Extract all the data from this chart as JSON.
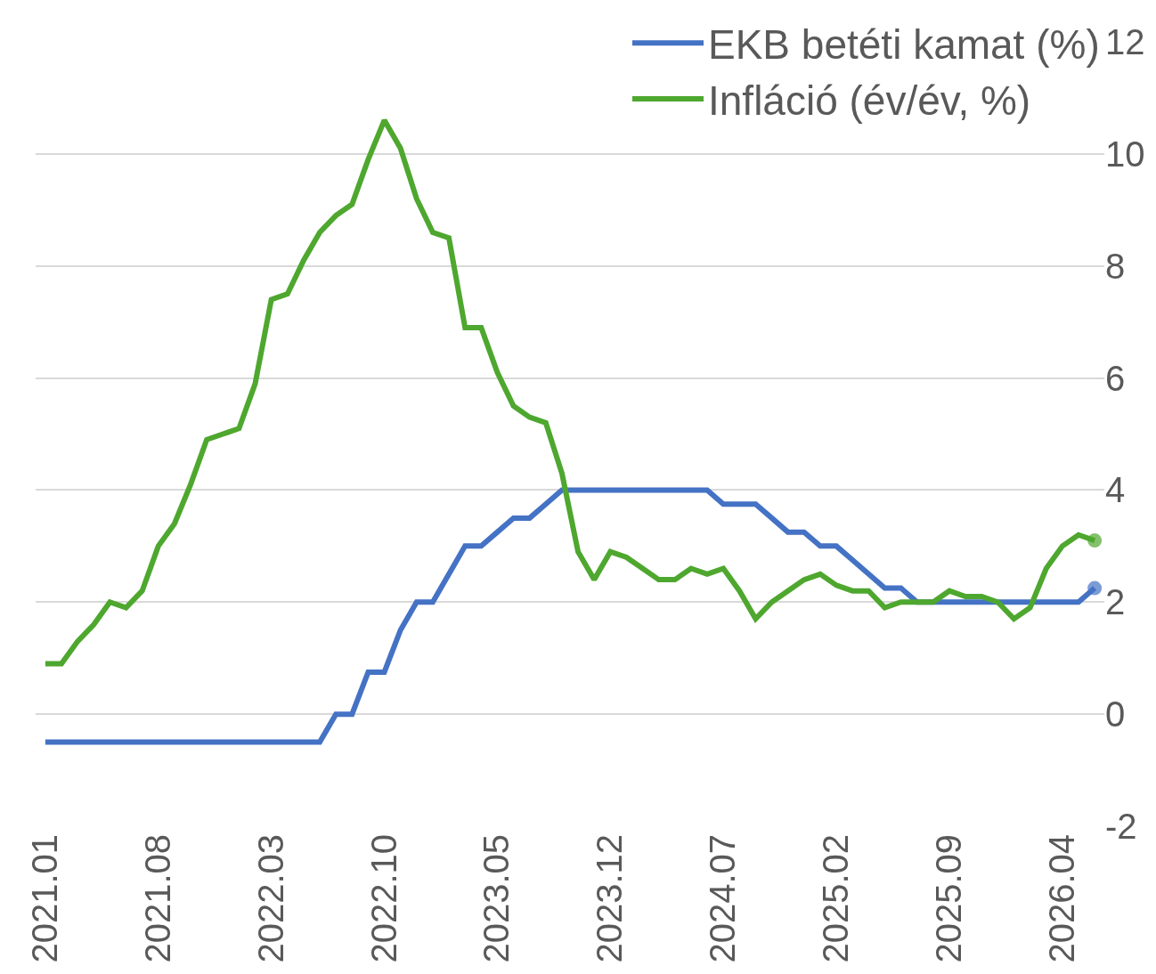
{
  "chart_data": {
    "type": "line",
    "categories": [
      "2021.01",
      null,
      null,
      null,
      null,
      null,
      null,
      "2021.08",
      null,
      null,
      null,
      null,
      null,
      null,
      "2022.03",
      null,
      null,
      null,
      null,
      null,
      null,
      "2022.10",
      null,
      null,
      null,
      null,
      null,
      null,
      "2023.05",
      null,
      null,
      null,
      null,
      null,
      null,
      "2023.12",
      null,
      null,
      null,
      null,
      null,
      null,
      "2024.07",
      null,
      null,
      null,
      null,
      null,
      null,
      "2025.02",
      null,
      null,
      null,
      null,
      null,
      null,
      "2025.09",
      null,
      null,
      null,
      null,
      null,
      null,
      "2026.04",
      null,
      null
    ],
    "series": [
      {
        "name": "EKB betéti kamat (%)",
        "color": "#4472c4",
        "values": [
          -0.5,
          -0.5,
          -0.5,
          -0.5,
          -0.5,
          -0.5,
          -0.5,
          -0.5,
          -0.5,
          -0.5,
          -0.5,
          -0.5,
          -0.5,
          -0.5,
          -0.5,
          -0.5,
          -0.5,
          -0.5,
          0,
          0,
          0.75,
          0.75,
          1.5,
          2,
          2,
          2.5,
          3,
          3,
          3.25,
          3.5,
          3.5,
          3.75,
          4,
          4,
          4,
          4,
          4,
          4,
          4,
          4,
          4,
          4,
          3.75,
          3.75,
          3.75,
          3.5,
          3.25,
          3.25,
          3,
          3,
          2.75,
          2.5,
          2.25,
          2.25,
          2,
          2,
          2,
          2,
          2,
          2,
          2,
          2,
          2,
          2,
          2,
          2.25
        ]
      },
      {
        "name": "Infláció (év/év, %)",
        "color": "#4ea72e",
        "values": [
          0.9,
          0.9,
          1.3,
          1.6,
          2.0,
          1.9,
          2.2,
          3.0,
          3.4,
          4.1,
          4.9,
          5.0,
          5.1,
          5.9,
          7.4,
          7.5,
          8.1,
          8.6,
          8.9,
          9.1,
          9.9,
          10.6,
          10.1,
          9.2,
          8.6,
          8.5,
          6.9,
          6.9,
          6.1,
          5.5,
          5.3,
          5.2,
          4.3,
          2.9,
          2.4,
          2.9,
          2.8,
          2.6,
          2.4,
          2.4,
          2.6,
          2.5,
          2.6,
          2.2,
          1.7,
          2.0,
          2.2,
          2.4,
          2.5,
          2.3,
          2.2,
          2.2,
          1.9,
          2.0,
          2.0,
          2.0,
          2.2,
          2.1,
          2.1,
          2.0,
          1.7,
          1.9,
          2.6,
          3.0,
          3.2,
          3.1
        ]
      }
    ],
    "ylim": [
      -2,
      12
    ],
    "yticks": [
      -2,
      0,
      2,
      4,
      6,
      8,
      10,
      12
    ],
    "grid": "y",
    "legend": "top right",
    "line_style": "solid"
  }
}
